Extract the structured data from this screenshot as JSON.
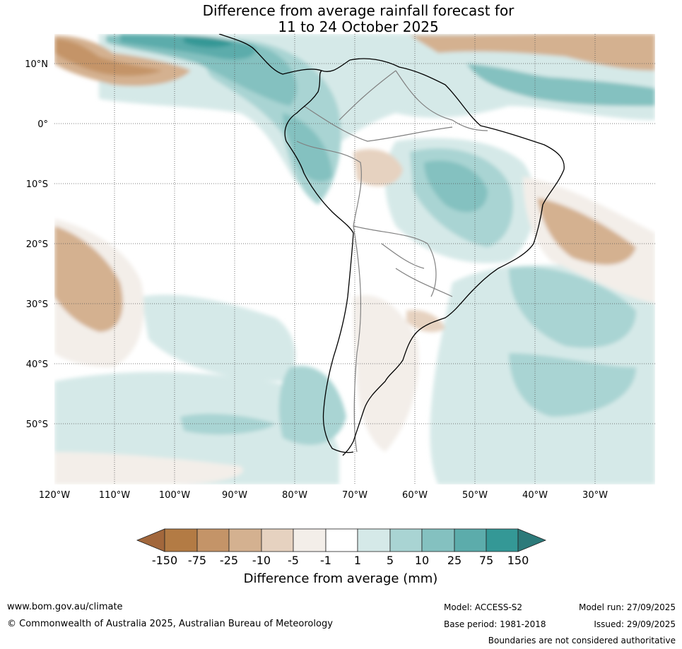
{
  "title": {
    "line1": "Difference from average rainfall forecast for",
    "line2": "11 to 24 October 2025"
  },
  "map": {
    "lat_labels": [
      "10°N",
      "0°",
      "10°S",
      "20°S",
      "30°S",
      "40°S",
      "50°S"
    ],
    "lon_labels": [
      "120°W",
      "110°W",
      "100°W",
      "90°W",
      "80°W",
      "70°W",
      "60°W",
      "50°W",
      "40°W",
      "30°W"
    ],
    "lat_range": [
      -60,
      15
    ],
    "lon_range": [
      -120,
      -20
    ]
  },
  "colorbar": {
    "title": "Difference from average (mm)",
    "tick_labels": [
      "-150",
      "-75",
      "-25",
      "-10",
      "-5",
      "-1",
      "1",
      "5",
      "10",
      "25",
      "75",
      "150"
    ],
    "colors": [
      "#a2673c",
      "#b37b44",
      "#c49468",
      "#d4b190",
      "#e6d2c0",
      "#f3eee9",
      "#ffffff",
      "#d5e9e8",
      "#a9d4d3",
      "#84c1c0",
      "#5cacab",
      "#349896",
      "#2c7a7a"
    ]
  },
  "footer": {
    "website": "www.bom.gov.au/climate",
    "copyright": "© Commonwealth of Australia 2025, Australian Bureau of Meteorology",
    "model": "Model: ACCESS-S2",
    "base_period": "Base period: 1981-2018",
    "model_run": "Model run: 27/09/2025",
    "issued": "Issued: 29/09/2025",
    "disclaimer": "Boundaries are not considered authoritative"
  }
}
